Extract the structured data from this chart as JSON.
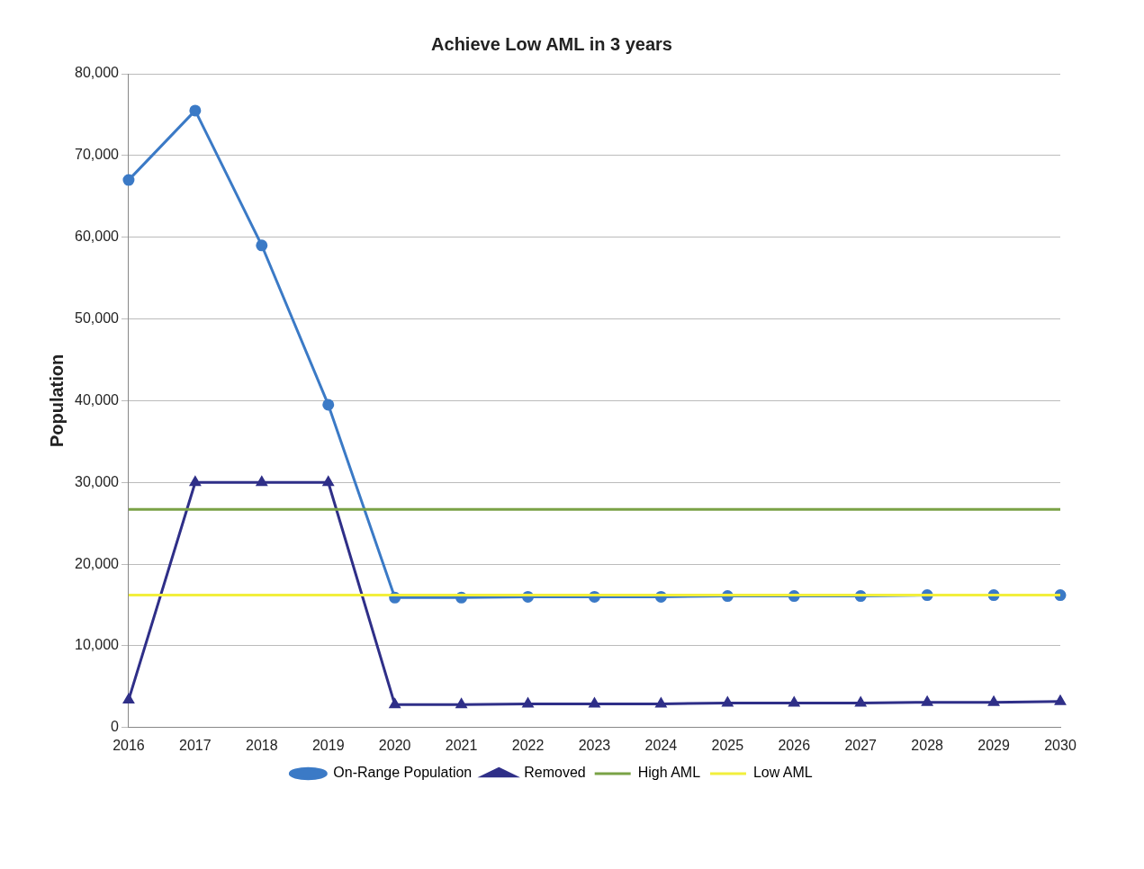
{
  "chart_data": {
    "type": "line",
    "title": "Achieve Low AML in 3 years",
    "ylabel": "Population",
    "categories": [
      "2016",
      "2017",
      "2018",
      "2019",
      "2020",
      "2021",
      "2022",
      "2023",
      "2024",
      "2025",
      "2026",
      "2027",
      "2028",
      "2029",
      "2030"
    ],
    "series": [
      {
        "name": "On-Range Population",
        "color": "#3b7ac6",
        "marker": "circle",
        "values": [
          67000,
          75500,
          59000,
          39500,
          15900,
          15900,
          16000,
          16000,
          16000,
          16100,
          16100,
          16100,
          16200,
          16200,
          16200
        ]
      },
      {
        "name": "Removed",
        "color": "#2f2f88",
        "marker": "triangle",
        "values": [
          3400,
          30000,
          30000,
          30000,
          2800,
          2800,
          2900,
          2900,
          2900,
          3000,
          3000,
          3000,
          3100,
          3100,
          3200
        ]
      },
      {
        "name": "High AML",
        "color": "#7aa246",
        "marker": "none",
        "values": [
          26700,
          26700,
          26700,
          26700,
          26700,
          26700,
          26700,
          26700,
          26700,
          26700,
          26700,
          26700,
          26700,
          26700,
          26700
        ]
      },
      {
        "name": "Low AML",
        "color": "#f2ef3c",
        "marker": "none",
        "values": [
          16200,
          16200,
          16200,
          16200,
          16200,
          16200,
          16200,
          16200,
          16200,
          16200,
          16200,
          16200,
          16200,
          16200,
          16200
        ]
      }
    ],
    "ylim": [
      0,
      80000
    ],
    "yticks": [
      0,
      {
        "value": 10000,
        "label": "10,000"
      },
      {
        "value": 20000,
        "label": "20,000"
      },
      {
        "value": 30000,
        "label": "30,000"
      },
      {
        "value": 40000,
        "label": "40,000"
      },
      {
        "value": 50000,
        "label": "50,000"
      },
      {
        "value": 60000,
        "label": "60,000"
      },
      {
        "value": 70000,
        "label": "70,000"
      },
      {
        "value": 80000,
        "label": "80,000"
      }
    ],
    "grid": "y",
    "legend": "bottom"
  }
}
